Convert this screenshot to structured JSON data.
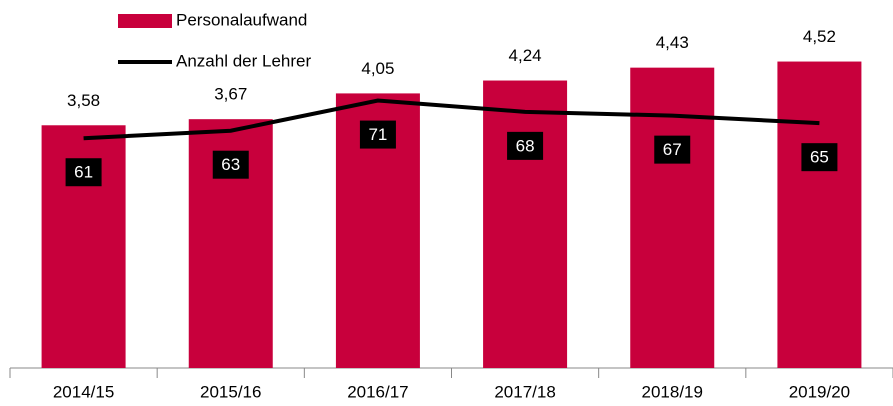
{
  "chart_data": {
    "type": "bar-line",
    "categories": [
      "2014/15",
      "2015/16",
      "2016/17",
      "2017/18",
      "2018/19",
      "2019/20"
    ],
    "series": [
      {
        "name": "Personalaufwand",
        "color": "#c8003c",
        "type": "bar",
        "values": [
          3.58,
          3.67,
          4.05,
          4.24,
          4.43,
          4.52
        ],
        "value_labels": [
          "3,58",
          "3,67",
          "4,05",
          "4,24",
          "4,43",
          "4,52"
        ]
      },
      {
        "name": "Anzahl der Lehrer",
        "color": "#000000",
        "type": "line",
        "axis": "y2",
        "values": [
          61,
          63,
          71,
          68,
          67,
          65
        ]
      }
    ],
    "ylim": [
      0,
      5
    ],
    "y2lim": [
      0,
      90
    ],
    "legend": "top-left"
  }
}
